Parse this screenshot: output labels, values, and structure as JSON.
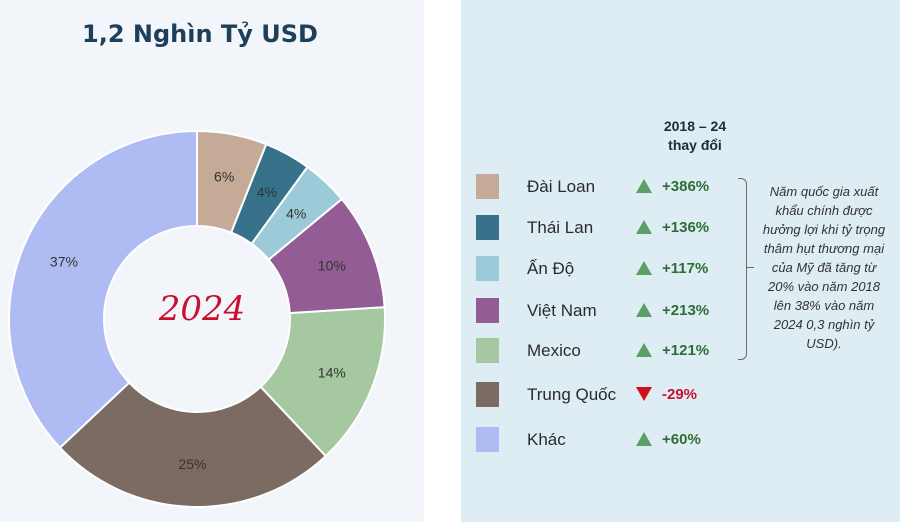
{
  "chart_data": {
    "type": "pie",
    "title": "1,2 Nghìn Tỷ USD",
    "center_label": "2024",
    "slices": [
      {
        "name": "Đài Loan",
        "value": 6,
        "label": "6%",
        "color": "#c5aa97"
      },
      {
        "name": "Thái Lan",
        "value": 4,
        "label": "4%",
        "color": "#38718a"
      },
      {
        "name": "Ấn Độ",
        "value": 4,
        "label": "4%",
        "color": "#9ccad8"
      },
      {
        "name": "Việt Nam",
        "value": 10,
        "label": "10%",
        "color": "#935c94"
      },
      {
        "name": "Mexico",
        "value": 14,
        "label": "14%",
        "color": "#a6c8a0"
      },
      {
        "name": "Trung Quốc",
        "value": 25,
        "label": "25%",
        "color": "#7b6b62"
      },
      {
        "name": "Khác",
        "value": 37,
        "label": "37%",
        "color": "#aebcf3"
      }
    ]
  },
  "legend": {
    "header_line1": "2018 – 24",
    "header_line2": "thay đổi",
    "items": [
      {
        "name": "Đài Loan",
        "change": "+386%",
        "direction": "up"
      },
      {
        "name": "Thái Lan",
        "change": "+136%",
        "direction": "up"
      },
      {
        "name": "Ấn Độ",
        "change": "+117%",
        "direction": "up"
      },
      {
        "name": "Việt Nam",
        "change": "+213%",
        "direction": "up"
      },
      {
        "name": "Mexico",
        "change": "+121%",
        "direction": "up"
      },
      {
        "name": "Trung Quốc",
        "change": "-29%",
        "direction": "down"
      },
      {
        "name": "Khác",
        "change": "+60%",
        "direction": "up"
      }
    ]
  },
  "note": "Năm quốc gia xuất khẩu chính được hưởng lợi khi tỷ trọng thâm hụt thương mại của Mỹ đã tăng từ 20% vào năm 2018 lên 38% vào năm 2024 0,3 nghìn tỷ USD).",
  "colors": {
    "title": "#1e3f5a",
    "positive": "#2c6e35",
    "negative": "#c8102e",
    "up_arrow": "#5aa064",
    "down_arrow": "#d0111b"
  }
}
